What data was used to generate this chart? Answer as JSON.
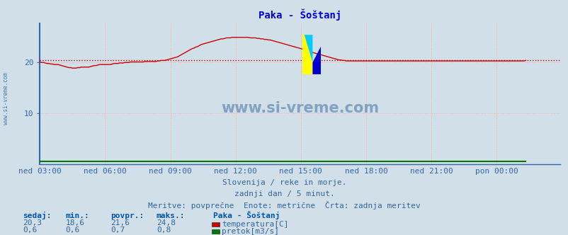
{
  "title": "Paka - Šoštanj",
  "bg_color": "#d0dfe8",
  "plot_bg_color": "#d0dfe8",
  "grid_color": "#ffaaaa",
  "title_color": "#0000cc",
  "axis_color": "#3366aa",
  "text_color": "#336699",
  "header_color": "#0055aa",
  "xlim": [
    0,
    287
  ],
  "ylim": [
    0,
    27.5
  ],
  "yticks": [
    10,
    20
  ],
  "xtick_labels": [
    "ned 03:00",
    "ned 06:00",
    "ned 09:00",
    "ned 12:00",
    "ned 15:00",
    "ned 18:00",
    "ned 21:00",
    "pon 00:00"
  ],
  "xtick_positions": [
    0,
    36,
    72,
    108,
    144,
    180,
    216,
    252
  ],
  "temp_color": "#cc0000",
  "flow_color": "#007700",
  "avg_value": 20.3,
  "watermark": "www.si-vreme.com",
  "watermark_side": "www.si-vreme.com",
  "subtitle1": "Slovenija / reke in morje.",
  "subtitle2": "zadnji dan / 5 minut.",
  "subtitle3": "Meritve: povprečne  Enote: metrične  Črta: zadnja meritev",
  "table_headers": [
    "sedaj:",
    "min.:",
    "povpr.:",
    "maks.:"
  ],
  "table_row1": [
    "20,3",
    "18,6",
    "21,6",
    "24,8"
  ],
  "table_row2": [
    "0,6",
    "0,6",
    "0,7",
    "0,8"
  ],
  "legend_title": "Paka - Šoštanj",
  "legend_items": [
    "temperatura[C]",
    "pretok[m3/s]"
  ],
  "legend_colors": [
    "#cc0000",
    "#007700"
  ],
  "temp_data": [
    20.0,
    19.9,
    19.9,
    19.8,
    19.7,
    19.7,
    19.6,
    19.6,
    19.5,
    19.5,
    19.5,
    19.4,
    19.3,
    19.2,
    19.1,
    19.0,
    18.9,
    18.9,
    18.8,
    18.8,
    18.8,
    18.9,
    18.9,
    19.0,
    19.0,
    19.0,
    19.0,
    19.0,
    19.1,
    19.2,
    19.3,
    19.3,
    19.4,
    19.5,
    19.5,
    19.5,
    19.5,
    19.5,
    19.5,
    19.5,
    19.6,
    19.7,
    19.7,
    19.7,
    19.8,
    19.8,
    19.8,
    19.9,
    19.9,
    19.9,
    20.0,
    20.0,
    20.0,
    20.0,
    20.0,
    20.0,
    20.0,
    20.0,
    20.1,
    20.1,
    20.1,
    20.1,
    20.1,
    20.1,
    20.1,
    20.2,
    20.2,
    20.3,
    20.3,
    20.3,
    20.4,
    20.5,
    20.6,
    20.7,
    20.8,
    20.9,
    21.0,
    21.2,
    21.4,
    21.6,
    21.8,
    22.0,
    22.2,
    22.4,
    22.6,
    22.7,
    22.9,
    23.0,
    23.2,
    23.4,
    23.5,
    23.6,
    23.7,
    23.8,
    23.9,
    24.0,
    24.1,
    24.2,
    24.3,
    24.4,
    24.5,
    24.5,
    24.6,
    24.7,
    24.7,
    24.7,
    24.8,
    24.8,
    24.8,
    24.8,
    24.8,
    24.8,
    24.8,
    24.8,
    24.8,
    24.8,
    24.7,
    24.7,
    24.7,
    24.7,
    24.6,
    24.6,
    24.5,
    24.5,
    24.4,
    24.4,
    24.3,
    24.3,
    24.2,
    24.1,
    24.0,
    23.9,
    23.8,
    23.7,
    23.6,
    23.5,
    23.4,
    23.3,
    23.2,
    23.1,
    23.0,
    22.9,
    22.8,
    22.7,
    22.6,
    22.5,
    22.3,
    22.2,
    22.1,
    22.0,
    21.9,
    21.8,
    21.7,
    21.6,
    21.5,
    21.4,
    21.3,
    21.2,
    21.1,
    21.0,
    20.9,
    20.8,
    20.7,
    20.6,
    20.5,
    20.4,
    20.4,
    20.3,
    20.3,
    20.2,
    20.2,
    20.2,
    20.2,
    20.2,
    20.2,
    20.2,
    20.2,
    20.2,
    20.2,
    20.2,
    20.2,
    20.2,
    20.2,
    20.2,
    20.2,
    20.2,
    20.2,
    20.2,
    20.2,
    20.2,
    20.2,
    20.2,
    20.2,
    20.2,
    20.2,
    20.2,
    20.2,
    20.2,
    20.2,
    20.2,
    20.2,
    20.2,
    20.2,
    20.2,
    20.2,
    20.2,
    20.2,
    20.2,
    20.2,
    20.2,
    20.2,
    20.2,
    20.2,
    20.2,
    20.2,
    20.2,
    20.2,
    20.2,
    20.2,
    20.2,
    20.2,
    20.2,
    20.2,
    20.2,
    20.2,
    20.2,
    20.2,
    20.2,
    20.2,
    20.2,
    20.2,
    20.2,
    20.2,
    20.2,
    20.2,
    20.2,
    20.2,
    20.2,
    20.2,
    20.2,
    20.2,
    20.2,
    20.2,
    20.2,
    20.2,
    20.2,
    20.2,
    20.2,
    20.2,
    20.2,
    20.2,
    20.2,
    20.2,
    20.2,
    20.2,
    20.2,
    20.2,
    20.2,
    20.2,
    20.2,
    20.2,
    20.2,
    20.2,
    20.2,
    20.2,
    20.2,
    20.2,
    20.2,
    20.3
  ],
  "flow_data_val": 0.65
}
